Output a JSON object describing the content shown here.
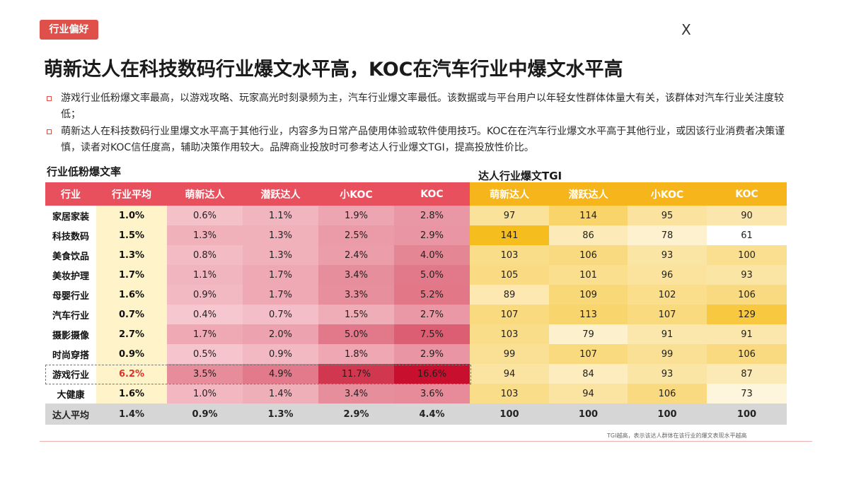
{
  "tag": "行业偏好",
  "close_label": "X",
  "title": "萌新达人在科技数码行业爆文水平高，KOC在汽车行业中爆文水平高",
  "bullets": [
    "游戏行业低粉爆文率最高，以游戏攻略、玩家高光时刻录频为主，汽车行业爆文率最低。该数据或与平台用户以年轻女性群体体量大有关，该群体对汽车行业关注度较低；",
    "萌新达人在科技数码行业里爆文水平高于其他行业，内容多为日常产品使用体验或软件使用技巧。KOC在在汽车行业爆文水平高于其他行业，或因该行业消费者决策谨慎，读者对KOC信任度高，辅助决策作用较大。品牌商业投放时可参考达人行业爆文TGI，提高投放性价比。"
  ],
  "left_title": "行业低粉爆文率",
  "right_title": "达人行业爆文TGI",
  "headers": [
    "行业",
    "行业平均",
    "萌新达人",
    "潜跃达人",
    "小KOC",
    "KOC",
    "萌新达人",
    "潜跃达人",
    "小KOC",
    "KOC"
  ],
  "rows": [
    {
      "industry": "家居家装",
      "avg": "1.0%",
      "rates": [
        "0.6%",
        "1.1%",
        "1.9%",
        "2.8%"
      ],
      "tgi": [
        "97",
        "114",
        "95",
        "90"
      ]
    },
    {
      "industry": "科技数码",
      "avg": "1.5%",
      "rates": [
        "1.3%",
        "1.3%",
        "2.5%",
        "2.9%"
      ],
      "tgi": [
        "141",
        "86",
        "78",
        "61"
      ]
    },
    {
      "industry": "美食饮品",
      "avg": "1.3%",
      "rates": [
        "0.8%",
        "1.3%",
        "2.4%",
        "4.0%"
      ],
      "tgi": [
        "103",
        "106",
        "93",
        "100"
      ]
    },
    {
      "industry": "美妆护理",
      "avg": "1.7%",
      "rates": [
        "1.1%",
        "1.7%",
        "3.4%",
        "5.0%"
      ],
      "tgi": [
        "105",
        "101",
        "96",
        "93"
      ]
    },
    {
      "industry": "母婴行业",
      "avg": "1.6%",
      "rates": [
        "0.9%",
        "1.7%",
        "3.3%",
        "5.2%"
      ],
      "tgi": [
        "89",
        "109",
        "102",
        "106"
      ]
    },
    {
      "industry": "汽车行业",
      "avg": "0.7%",
      "rates": [
        "0.4%",
        "0.7%",
        "1.5%",
        "2.7%"
      ],
      "tgi": [
        "107",
        "113",
        "107",
        "129"
      ]
    },
    {
      "industry": "摄影摄像",
      "avg": "2.7%",
      "rates": [
        "1.7%",
        "2.0%",
        "5.0%",
        "7.5%"
      ],
      "tgi": [
        "103",
        "79",
        "91",
        "91"
      ]
    },
    {
      "industry": "时尚穿搭",
      "avg": "0.9%",
      "rates": [
        "0.5%",
        "0.9%",
        "1.8%",
        "2.9%"
      ],
      "tgi": [
        "99",
        "107",
        "99",
        "106"
      ]
    },
    {
      "industry": "游戏行业",
      "avg": "6.2%",
      "rates": [
        "3.5%",
        "4.9%",
        "11.7%",
        "16.6%"
      ],
      "tgi": [
        "94",
        "84",
        "93",
        "87"
      ]
    },
    {
      "industry": "大健康",
      "avg": "1.6%",
      "rates": [
        "1.0%",
        "1.4%",
        "3.4%",
        "3.6%"
      ],
      "tgi": [
        "103",
        "94",
        "106",
        "73"
      ]
    }
  ],
  "footer": {
    "industry": "达人平均",
    "avg": "1.4%",
    "rates": [
      "0.9%",
      "1.3%",
      "2.9%",
      "4.4%"
    ],
    "tgi": [
      "100",
      "100",
      "100",
      "100"
    ]
  },
  "note": "TGI越高，表示该达人群体在该行业的爆文表现水平越高",
  "colors": {
    "accent": "#e0504a",
    "red_header": "#e8505d",
    "yellow_header": "#f5b51b",
    "avg_bg": "#fff3c9",
    "footer_bg": "#d6d6d6"
  }
}
